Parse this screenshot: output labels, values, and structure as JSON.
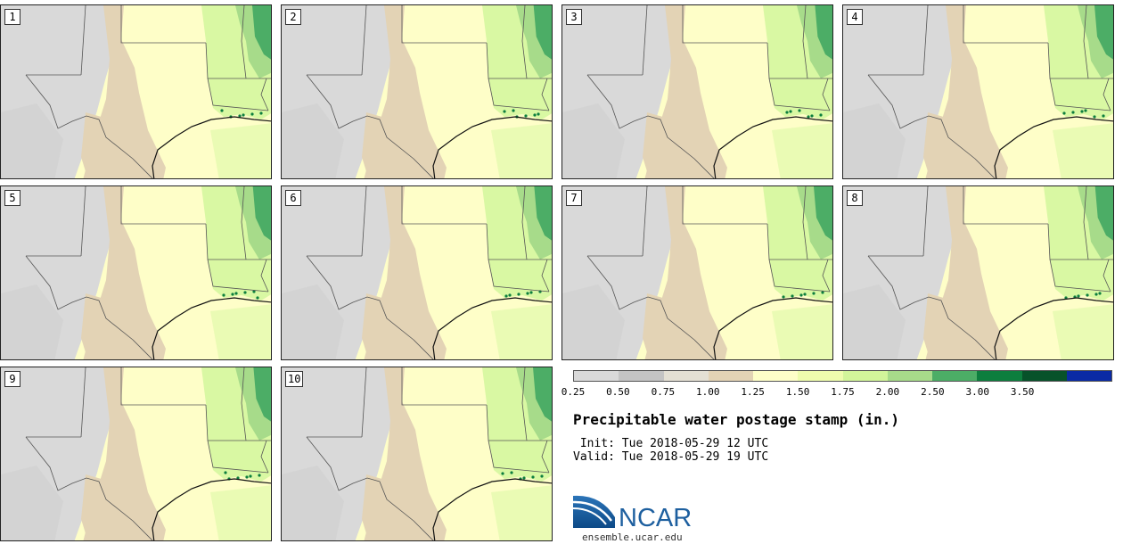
{
  "panels": [
    {
      "label": "1"
    },
    {
      "label": "2"
    },
    {
      "label": "3"
    },
    {
      "label": "4"
    },
    {
      "label": "5"
    },
    {
      "label": "6"
    },
    {
      "label": "7"
    },
    {
      "label": "8"
    },
    {
      "label": "9"
    },
    {
      "label": "10"
    }
  ],
  "legend": {
    "colors": [
      "#d9d9d9",
      "#c4c4c4",
      "#e4e0d4",
      "#e3d3b5",
      "#fefec8",
      "#eefcad",
      "#d2f59a",
      "#a7db8a",
      "#4cad66",
      "#0d7e3e",
      "#07522a",
      "#0a2aa5"
    ],
    "ticks": [
      "0.25",
      "0.50",
      "0.75",
      "1.00",
      "1.25",
      "1.50",
      "1.75",
      "2.00",
      "2.50",
      "3.00",
      "3.50"
    ]
  },
  "title": "Precipitable water postage stamp (in.)",
  "init_line": " Init: Tue 2018-05-29 12 UTC",
  "valid_line": "Valid: Tue 2018-05-29 19 UTC",
  "logo": {
    "text": "NCAR",
    "website": "ensemble.ucar.edu"
  }
}
